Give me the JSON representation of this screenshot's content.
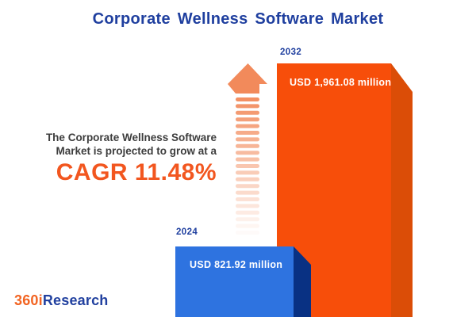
{
  "header": {
    "title": "Corporate Wellness Software Market"
  },
  "annotation": {
    "line1": "The Corporate Wellness Software",
    "line2": "Market is projected to grow at a",
    "cagr": "CAGR 11.48%"
  },
  "logo": {
    "part1": "360i",
    "part2": "Research"
  },
  "colors": {
    "title_blue": "#1F3F9F",
    "bar2032_face": "#F74E0A",
    "bar2032_side": "#DB4D07",
    "bar2024_face": "#2E73E0",
    "bar2024_side": "#093183",
    "cagr_orange": "#F2561F",
    "arrow": "#F28A5B",
    "annotation_text": "#3D3D3D",
    "logo_orange": "#F26422",
    "logo_blue": "#21409F",
    "value_text": "#FFFFFF",
    "background": "#FFFFFF"
  },
  "chart_data": {
    "type": "bar",
    "categories": [
      "2024",
      "2032"
    ],
    "values": [
      821.92,
      1961.08
    ],
    "unit": "USD million",
    "value_labels": [
      "USD 821.92 million",
      "USD 1,961.08 million"
    ],
    "series_colors": [
      "#2E73E0",
      "#F74E0A"
    ],
    "title": "Corporate Wellness Software Market",
    "annotation": "The Corporate Wellness Software Market is projected to grow at a CAGR 11.48%",
    "cagr_percent": 11.48,
    "xlabel": "",
    "ylabel": "",
    "legend": false,
    "axes_shown": false,
    "style": "3d-extruded-bars-with-growth-arrow"
  }
}
